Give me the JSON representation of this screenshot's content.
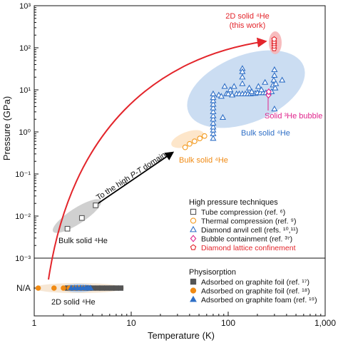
{
  "chart_data": {
    "type": "scatter",
    "xlabel": "Temperature (K)",
    "ylabel": "Pressure (GPa)",
    "x_scale": "log",
    "y_scale": "log",
    "xlim": [
      1,
      1000
    ],
    "ylim": [
      0.001,
      1000
    ],
    "x_ticks": [
      "1",
      "10",
      "100",
      "1,000"
    ],
    "y_ticks": [
      "10⁻³",
      "10⁻²",
      "10⁻¹",
      "10⁰",
      "10¹",
      "10²",
      "10³"
    ],
    "na_label": "N/A",
    "annotations": {
      "bulk_low": "Bulk solid ⁴He",
      "bulk_mid": "Bulk solid ⁴He",
      "bulk_high": "Bulk solid ⁴He",
      "solid_3he": "Solid ³He bubble",
      "two_d_top_1": "2D solid ⁴He",
      "two_d_top_2": "(this work)",
      "two_d_bottom": "2D solid ⁴He",
      "arrow_pre": "To the high ",
      "arrow_pt": "P-T",
      "arrow_post": " domain"
    },
    "legend_high": {
      "title": "High pressure techniques",
      "entries": [
        {
          "label": "Tube compression (ref. ⁶)",
          "marker": "square-open",
          "color": "#555555"
        },
        {
          "label": "Thermal compression (ref. ⁹)",
          "marker": "circle-open",
          "color": "#f39a1e"
        },
        {
          "label": "Diamond anvil cell (refs. ¹⁰,¹¹)",
          "marker": "triangle-open",
          "color": "#2f6fc6"
        },
        {
          "label": "Bubble containment (ref. ³⁷)",
          "marker": "diamond-open",
          "color": "#e0248c"
        },
        {
          "label": "Diamond lattice confinement",
          "marker": "pentagon-open",
          "color": "#e3252b"
        }
      ]
    },
    "legend_phys": {
      "title": "Physisorption",
      "entries": [
        {
          "label": "Adsorbed on graphite foil (ref. ¹⁷)",
          "marker": "square-filled",
          "color": "#555555"
        },
        {
          "label": "Adsorbed on graphite foil (ref. ¹⁸)",
          "marker": "circle-filled",
          "color": "#f08a13"
        },
        {
          "label": "Adsorbed on graphite foam (ref. ¹⁹)",
          "marker": "triangle-filled",
          "color": "#2f6fc6"
        }
      ]
    },
    "series": [
      {
        "key": "tube",
        "marker": "square-open",
        "color": "#555555",
        "points": [
          [
            2.2,
            0.005
          ],
          [
            3.1,
            0.009
          ],
          [
            4.3,
            0.018
          ]
        ]
      },
      {
        "key": "thermal",
        "marker": "circle-open",
        "color": "#f39a1e",
        "points": [
          [
            36,
            0.43
          ],
          [
            40,
            0.52
          ],
          [
            45,
            0.6
          ],
          [
            51,
            0.7
          ],
          [
            57,
            0.8
          ]
        ]
      },
      {
        "key": "dac",
        "marker": "triangle-open",
        "color": "#2f6fc6",
        "points": [
          [
            70,
            0.7
          ],
          [
            70,
            0.9
          ],
          [
            70,
            1.1
          ],
          [
            70,
            1.3
          ],
          [
            70,
            1.6
          ],
          [
            70,
            2.0
          ],
          [
            70,
            2.4
          ],
          [
            70,
            3.0
          ],
          [
            70,
            3.7
          ],
          [
            70,
            4.5
          ],
          [
            70,
            5.5
          ],
          [
            70,
            6.5
          ],
          [
            70,
            8
          ],
          [
            88,
            2.2
          ],
          [
            96,
            8
          ],
          [
            100,
            8
          ],
          [
            110,
            7.5
          ],
          [
            122,
            8
          ],
          [
            130,
            8
          ],
          [
            140,
            8
          ],
          [
            150,
            8
          ],
          [
            160,
            8
          ],
          [
            170,
            8
          ],
          [
            180,
            8.2
          ],
          [
            190,
            8.2
          ],
          [
            200,
            8.5
          ],
          [
            215,
            8.5
          ],
          [
            230,
            8.5
          ],
          [
            245,
            8.5
          ],
          [
            260,
            8.5
          ],
          [
            80,
            7.5
          ],
          [
            85,
            7
          ],
          [
            92,
            12
          ],
          [
            105,
            10
          ],
          [
            115,
            12
          ],
          [
            140,
            32
          ],
          [
            140,
            27
          ],
          [
            140,
            20
          ],
          [
            140,
            14
          ],
          [
            165,
            11
          ],
          [
            175,
            9
          ],
          [
            205,
            12
          ],
          [
            220,
            10
          ],
          [
            240,
            15
          ],
          [
            280,
            9
          ],
          [
            290,
            13
          ],
          [
            295,
            17
          ],
          [
            300,
            30
          ],
          [
            300,
            22
          ],
          [
            305,
            11
          ],
          [
            310,
            14
          ],
          [
            360,
            17
          ],
          [
            300,
            3.5
          ]
        ]
      },
      {
        "key": "bubble",
        "marker": "diamond-open",
        "color": "#e0248c",
        "points": [
          [
            260,
            7.5
          ],
          [
            262,
            9
          ]
        ]
      },
      {
        "key": "diamond",
        "marker": "pentagon-open",
        "color": "#e3252b",
        "points": [
          [
            298,
            95
          ],
          [
            298,
            110
          ],
          [
            298,
            125
          ],
          [
            298,
            140
          ],
          [
            298,
            160
          ]
        ]
      }
    ],
    "na_series": [
      {
        "key": "graphite_foil_17",
        "marker": "square-filled",
        "color": "#555555",
        "x": [
          2.2,
          2.5,
          2.8,
          3.1,
          3.4,
          3.7,
          4.0,
          4.5,
          5.0,
          5.6,
          6.3,
          7.0,
          7.8
        ]
      },
      {
        "key": "graphite_foil_18",
        "marker": "circle-filled",
        "color": "#f08a13",
        "x": [
          1.1,
          1.6,
          2.0,
          2.3,
          2.6,
          2.9,
          3.2
        ]
      },
      {
        "key": "graphite_foam_19",
        "marker": "triangle-filled",
        "color": "#2f6fc6",
        "x": [
          2.4,
          2.6,
          2.8,
          3.0,
          3.2,
          3.4,
          3.6,
          3.8
        ]
      }
    ]
  }
}
